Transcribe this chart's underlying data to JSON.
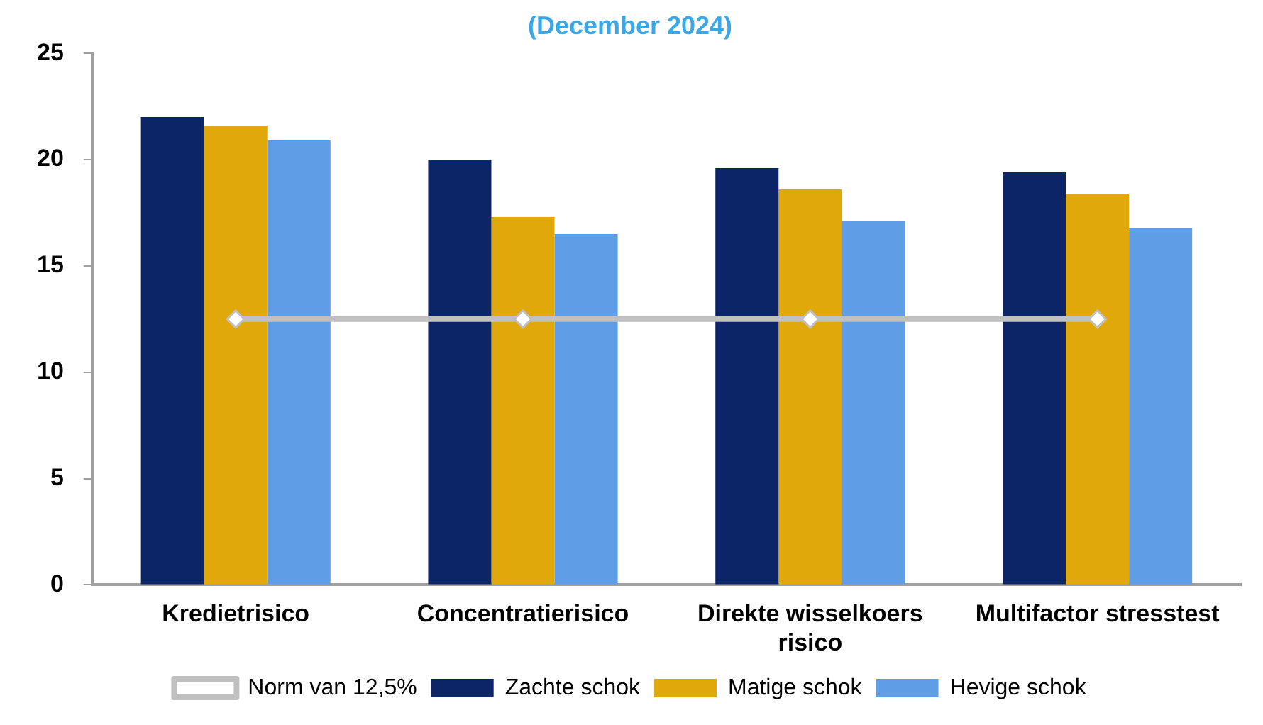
{
  "chart_data": {
    "type": "bar",
    "title": "(December 2024)",
    "categories": [
      "Kredietrisico",
      "Concentratierisico",
      "Direkte wisselkoers risico",
      "Multifactor stresstest"
    ],
    "series": [
      {
        "name": "Zachte schok",
        "color": "#0b2566",
        "values": [
          22.0,
          20.0,
          19.6,
          19.4
        ]
      },
      {
        "name": "Matige schok",
        "color": "#e0a80a",
        "values": [
          21.6,
          17.3,
          18.6,
          18.4
        ]
      },
      {
        "name": "Hevige schok",
        "color": "#5f9de6",
        "values": [
          20.9,
          16.5,
          17.1,
          16.8
        ]
      },
      {
        "name": "Norm van 12,5%",
        "type": "line",
        "color": "#c0c0c0",
        "marker": "diamond",
        "values": [
          12.5,
          12.5,
          12.5,
          12.5
        ]
      }
    ],
    "ylim": [
      0,
      25
    ],
    "yticks": [
      0,
      5,
      10,
      15,
      20,
      25
    ],
    "grid": false,
    "legend": "bottom"
  }
}
